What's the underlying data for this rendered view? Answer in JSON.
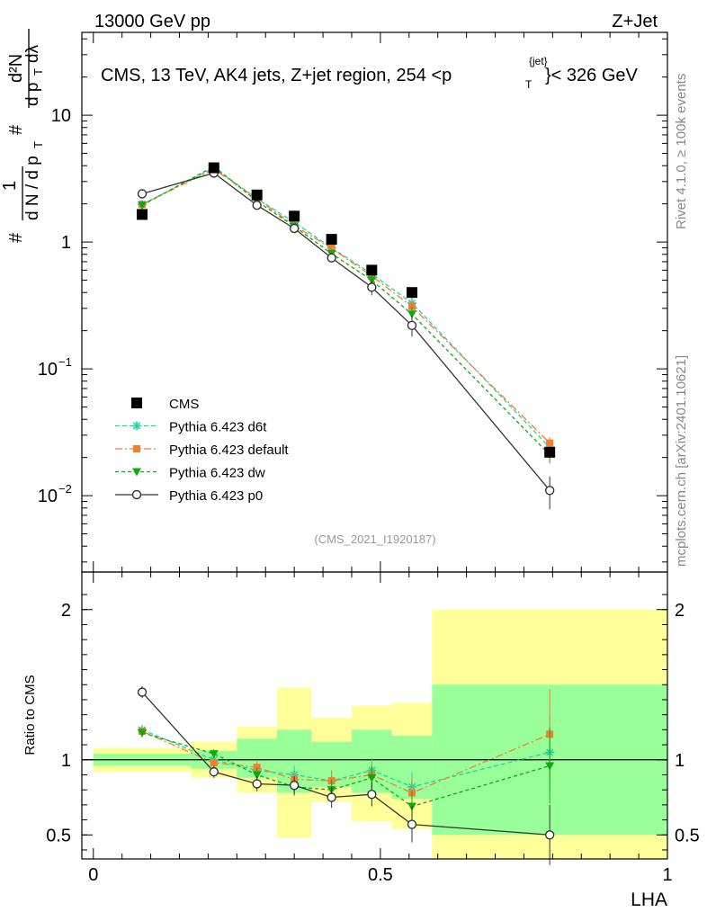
{
  "header": {
    "left": "13000 GeV pp",
    "right": "Z+Jet",
    "plot_title": "CMS, 13 TeV, AK4 jets, Z+jet region, 254 <p",
    "plot_title_sup": "{jet}",
    "plot_title_sub": "T",
    "plot_title_end": "}< 326 GeV",
    "watermark": "(CMS_2021_I1920187)"
  },
  "side_labels": {
    "rivet": "Rivet 4.1.0, ≥ 100k events",
    "mcplots": "mcplots.cern.ch [arXiv:2401.10621]"
  },
  "colors": {
    "cms": "#000000",
    "d6t": "#1fd6a0",
    "default": "#f08030",
    "dw": "#12a812",
    "p0": "#333333",
    "band_inner": "#99ff99",
    "band_outer": "#ffff99"
  },
  "chart_data": [
    {
      "type": "scatter",
      "scale": "log",
      "ylabel": "# 1 / dN/dp_T # d²N / dp_T dλ",
      "ylabel_parts": {
        "n1": "#",
        "one": "1",
        "dn": "d N / d p",
        "t1": "T",
        "n2": "#",
        "d2n": "d²N",
        "dpt": "d p",
        "t2": "T",
        "dl": "dλ"
      },
      "ylim": [
        0.0025,
        45
      ],
      "xlim": [
        -0.02,
        1.0
      ],
      "yticks": [
        {
          "value": 10,
          "label": "10"
        },
        {
          "value": 1,
          "label": "1"
        },
        {
          "value": 0.1,
          "label": "10",
          "sup": "−1"
        },
        {
          "value": 0.01,
          "label": "10",
          "sup": "−2"
        }
      ],
      "x": [
        0.085,
        0.21,
        0.285,
        0.35,
        0.415,
        0.485,
        0.555,
        0.795
      ],
      "xerr": [
        [
          0.0,
          0.17
        ],
        [
          0.17,
          0.25
        ],
        [
          0.25,
          0.32
        ],
        [
          0.32,
          0.38
        ],
        [
          0.38,
          0.45
        ],
        [
          0.45,
          0.52
        ],
        [
          0.52,
          0.59
        ],
        [
          0.59,
          1.0
        ]
      ],
      "series": [
        {
          "name": "CMS",
          "key": "cms",
          "values": [
            1.65,
            3.85,
            2.35,
            1.6,
            1.05,
            0.6,
            0.4,
            0.022
          ],
          "yerr": [
            0,
            0,
            0,
            0,
            0,
            0,
            0,
            0
          ]
        },
        {
          "name": "Pythia 6.423 d6t",
          "key": "d6t",
          "values": [
            1.98,
            3.85,
            2.2,
            1.43,
            0.9,
            0.56,
            0.33,
            0.024
          ],
          "yerr": [
            0.08,
            0.15,
            0.1,
            0.08,
            0.06,
            0.05,
            0.04,
            0.003
          ]
        },
        {
          "name": "Pythia 6.423 default",
          "key": "default",
          "values": [
            1.98,
            3.75,
            2.2,
            1.35,
            0.89,
            0.54,
            0.31,
            0.026
          ],
          "yerr": [
            0.08,
            0.15,
            0.1,
            0.08,
            0.06,
            0.05,
            0.04,
            0.003
          ]
        },
        {
          "name": "Pythia 6.423 dw",
          "key": "dw",
          "values": [
            1.95,
            3.95,
            2.1,
            1.33,
            0.81,
            0.5,
            0.27,
            0.021
          ],
          "yerr": [
            0.08,
            0.15,
            0.1,
            0.08,
            0.06,
            0.05,
            0.04,
            0.003
          ]
        },
        {
          "name": "Pythia 6.423 p0",
          "key": "p0",
          "values": [
            2.4,
            3.5,
            1.95,
            1.28,
            0.75,
            0.44,
            0.22,
            0.011
          ],
          "yerr": [
            0.1,
            0.15,
            0.1,
            0.08,
            0.06,
            0.06,
            0.04,
            0.0032
          ]
        }
      ],
      "legend_position": "bottom-left"
    },
    {
      "type": "scatter",
      "scale": "linear",
      "ylabel": "Ratio to CMS",
      "xlabel": "LHA",
      "ylim": [
        0.34,
        2.25
      ],
      "xlim": [
        -0.02,
        1.0
      ],
      "yticks": [
        0.5,
        1,
        2
      ],
      "xticks": [
        0,
        0.5,
        1
      ],
      "x": [
        0.085,
        0.21,
        0.285,
        0.35,
        0.415,
        0.485,
        0.555,
        0.795
      ],
      "bands": [
        {
          "x": [
            0.0,
            0.17
          ],
          "inner": [
            0.96,
            1.04
          ],
          "outer": [
            0.92,
            1.08
          ]
        },
        {
          "x": [
            0.17,
            0.25
          ],
          "inner": [
            0.94,
            1.06
          ],
          "outer": [
            0.88,
            1.12
          ]
        },
        {
          "x": [
            0.25,
            0.32
          ],
          "inner": [
            0.88,
            1.14
          ],
          "outer": [
            0.78,
            1.22
          ]
        },
        {
          "x": [
            0.32,
            0.38
          ],
          "inner": [
            0.78,
            1.2
          ],
          "outer": [
            0.48,
            1.48
          ]
        },
        {
          "x": [
            0.38,
            0.45
          ],
          "inner": [
            0.82,
            1.12
          ],
          "outer": [
            0.72,
            1.28
          ]
        },
        {
          "x": [
            0.45,
            0.52
          ],
          "inner": [
            0.78,
            1.2
          ],
          "outer": [
            0.59,
            1.36
          ]
        },
        {
          "x": [
            0.52,
            0.59
          ],
          "inner": [
            0.74,
            1.16
          ],
          "outer": [
            0.54,
            1.38
          ]
        },
        {
          "x": [
            0.59,
            1.0
          ],
          "inner": [
            0.5,
            1.5
          ],
          "outer": [
            0.34,
            2.0
          ]
        }
      ],
      "series": [
        {
          "name": "Pythia 6.423 d6t",
          "key": "d6t",
          "values": [
            1.2,
            1.0,
            0.93,
            0.9,
            0.86,
            0.93,
            0.82,
            1.05
          ],
          "yerr": [
            0.03,
            0.03,
            0.05,
            0.06,
            0.07,
            0.08,
            0.1,
            0.25
          ]
        },
        {
          "name": "Pythia 6.423 default",
          "key": "default",
          "values": [
            1.19,
            0.98,
            0.95,
            0.87,
            0.86,
            0.9,
            0.78,
            1.17
          ],
          "yerr": [
            0.03,
            0.03,
            0.05,
            0.06,
            0.07,
            0.08,
            0.1,
            0.3
          ]
        },
        {
          "name": "Pythia 6.423 dw",
          "key": "dw",
          "values": [
            1.18,
            1.04,
            0.9,
            0.82,
            0.8,
            0.88,
            0.69,
            0.96
          ],
          "yerr": [
            0.03,
            0.03,
            0.05,
            0.06,
            0.07,
            0.08,
            0.1,
            0.25
          ]
        },
        {
          "name": "Pythia 6.423 p0",
          "key": "p0",
          "values": [
            1.45,
            0.92,
            0.84,
            0.83,
            0.75,
            0.77,
            0.57,
            0.5
          ],
          "yerr": [
            0.04,
            0.04,
            0.05,
            0.06,
            0.07,
            0.08,
            0.12,
            0.2
          ]
        }
      ]
    }
  ]
}
